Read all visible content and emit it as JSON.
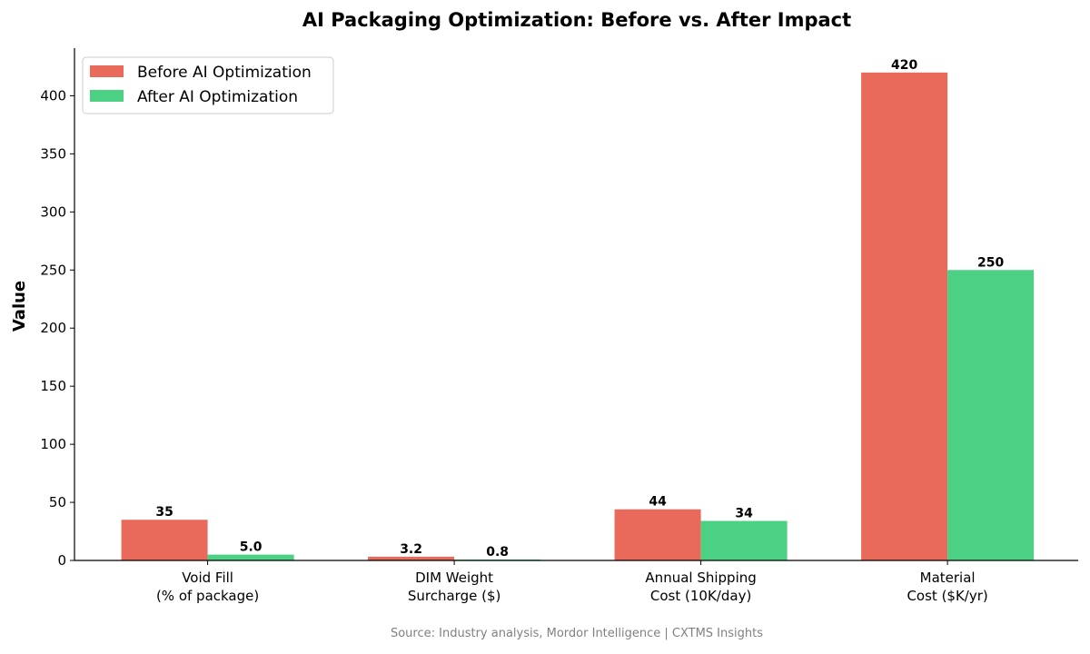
{
  "chart_data": {
    "type": "bar",
    "title": "AI Packaging Optimization: Before vs. After Impact",
    "xlabel": "",
    "ylabel": "Value",
    "categories": [
      "Void Fill\n(% of package)",
      "DIM Weight\nSurcharge ($)",
      "Annual Shipping\nCost (10K/day)",
      "Material\nCost ($K/yr)"
    ],
    "series": [
      {
        "name": "Before AI Optimization",
        "values": [
          35,
          3.2,
          44,
          420
        ],
        "labels": [
          "35",
          "3.2",
          "44",
          "420"
        ],
        "color": "#E9695B"
      },
      {
        "name": "After AI Optimization",
        "values": [
          5.0,
          0.8,
          34,
          250
        ],
        "labels": [
          "5.0",
          "0.8",
          "34",
          "250"
        ],
        "color": "#4CD083"
      }
    ],
    "ylim": [
      0,
      441
    ],
    "yticks": [
      0,
      50,
      100,
      150,
      200,
      250,
      300,
      350,
      400
    ],
    "grid": false,
    "legend": "top-left",
    "footnote": "Source: Industry analysis, Mordor Intelligence | CXTMS Insights"
  }
}
